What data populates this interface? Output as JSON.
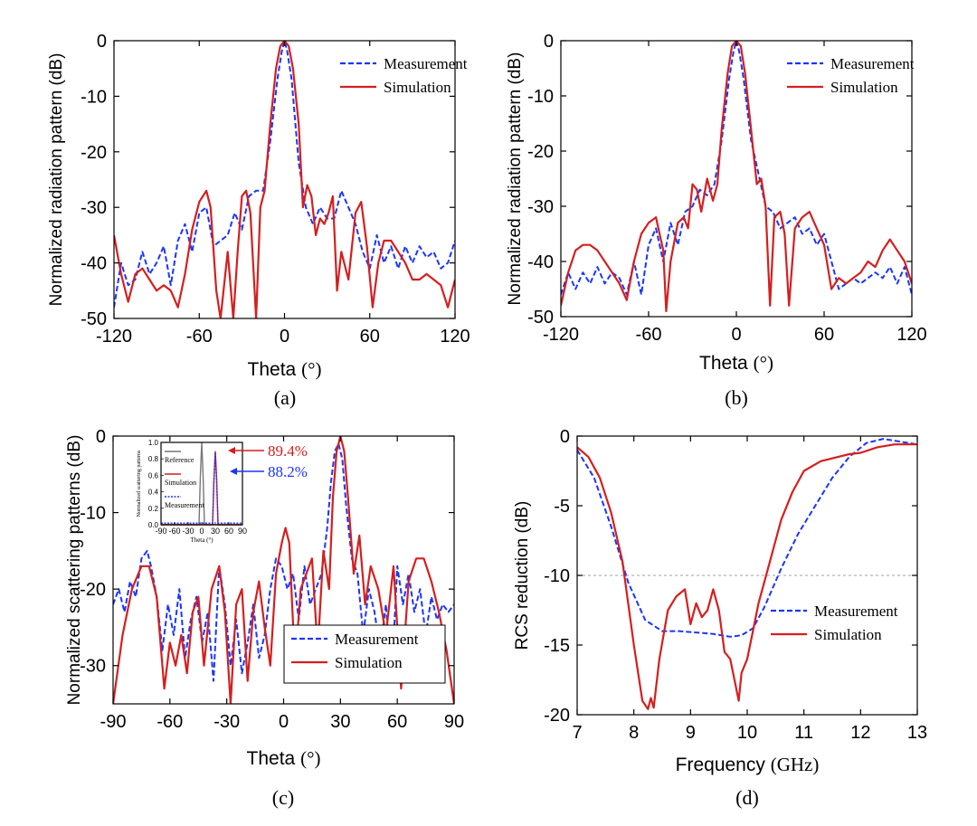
{
  "colors": {
    "measurement": "#1a35ff",
    "simulation": "#d41f1f",
    "reference": "#777777"
  },
  "chart_data": [
    {
      "id": "a",
      "type": "line",
      "caption": "(a)",
      "xlabel": "Theta (°)",
      "ylabel": "Normalized radiation pattern (dB)",
      "xlim": [
        -120,
        120
      ],
      "ylim": [
        -50,
        0
      ],
      "xticks": [
        "-120",
        "-60",
        "0",
        "60",
        "120"
      ],
      "yticks": [
        "0",
        "-10",
        "-20",
        "-30",
        "-40",
        "-50"
      ],
      "legend": {
        "position": "top-right",
        "entries": [
          "Measurement",
          "Simulation"
        ]
      },
      "series": [
        {
          "name": "Measurement",
          "style": "dashed",
          "x": [
            -120,
            -115,
            -110,
            -105,
            -100,
            -95,
            -90,
            -85,
            -80,
            -75,
            -70,
            -65,
            -60,
            -55,
            -50,
            -45,
            -40,
            -35,
            -30,
            -25,
            -20,
            -15,
            -10,
            -5,
            -2,
            0,
            2,
            5,
            10,
            15,
            20,
            25,
            30,
            35,
            40,
            45,
            50,
            55,
            60,
            65,
            70,
            75,
            80,
            85,
            90,
            95,
            100,
            105,
            110,
            115,
            120
          ],
          "y": [
            -48,
            -40,
            -44,
            -43,
            -38,
            -42,
            -40,
            -37,
            -44,
            -36,
            -33,
            -38,
            -31,
            -30,
            -37,
            -36,
            -35,
            -31,
            -34,
            -28,
            -27,
            -27,
            -18,
            -7,
            -2,
            0,
            -2,
            -7,
            -22,
            -30,
            -33,
            -30,
            -32,
            -32,
            -27,
            -30,
            -33,
            -38,
            -41,
            -35,
            -40,
            -37,
            -41,
            -37,
            -40,
            -37,
            -39,
            -38,
            -41,
            -40,
            -36
          ]
        },
        {
          "name": "Simulation",
          "style": "solid",
          "x": [
            -120,
            -115,
            -110,
            -105,
            -100,
            -95,
            -90,
            -85,
            -80,
            -75,
            -70,
            -65,
            -60,
            -55,
            -52,
            -48,
            -45,
            -40,
            -36,
            -33,
            -30,
            -27,
            -24,
            -20,
            -17,
            -14,
            -10,
            -6,
            -3,
            0,
            3,
            6,
            10,
            13,
            16,
            19,
            22,
            25,
            28,
            31,
            34,
            37,
            40,
            45,
            50,
            54,
            58,
            62,
            66,
            70,
            75,
            80,
            85,
            90,
            95,
            100,
            105,
            110,
            115,
            120
          ],
          "y": [
            -35,
            -42,
            -47,
            -42,
            -41,
            -43,
            -45,
            -44,
            -45,
            -48,
            -42,
            -34,
            -29,
            -27,
            -30,
            -45,
            -50,
            -38,
            -50,
            -38,
            -28,
            -27,
            -31,
            -50,
            -30,
            -27,
            -15,
            -5,
            -1,
            0,
            -1,
            -5,
            -15,
            -30,
            -26,
            -28,
            -35,
            -32,
            -33,
            -31,
            -28,
            -45,
            -38,
            -43,
            -31,
            -29,
            -37,
            -48,
            -40,
            -36,
            -36,
            -38,
            -40,
            -43,
            -43,
            -42,
            -43,
            -44,
            -48,
            -43
          ]
        }
      ]
    },
    {
      "id": "b",
      "type": "line",
      "caption": "(b)",
      "xlabel": "Theta (°)",
      "ylabel": "Normalized radiation pattern (dB)",
      "xlim": [
        -120,
        120
      ],
      "ylim": [
        -50,
        0
      ],
      "xticks": [
        "-120",
        "-60",
        "0",
        "60",
        "120"
      ],
      "yticks": [
        "0",
        "-10",
        "-20",
        "-30",
        "-40",
        "-50"
      ],
      "legend": {
        "position": "top-right",
        "entries": [
          "Measurement",
          "Simulation"
        ]
      },
      "series": [
        {
          "name": "Measurement",
          "style": "dashed",
          "x": [
            -120,
            -115,
            -110,
            -105,
            -100,
            -95,
            -90,
            -85,
            -80,
            -75,
            -70,
            -65,
            -60,
            -55,
            -50,
            -45,
            -40,
            -35,
            -30,
            -25,
            -20,
            -15,
            -10,
            -5,
            -2,
            0,
            2,
            5,
            10,
            15,
            20,
            25,
            30,
            35,
            40,
            45,
            50,
            55,
            60,
            65,
            70,
            75,
            80,
            85,
            90,
            95,
            100,
            105,
            110,
            115,
            120
          ],
          "y": [
            -46,
            -42,
            -45,
            -42,
            -44,
            -41,
            -44,
            -42,
            -43,
            -46,
            -40,
            -46,
            -37,
            -34,
            -40,
            -33,
            -37,
            -31,
            -30,
            -27,
            -28,
            -26,
            -18,
            -7,
            -2,
            0,
            -2,
            -7,
            -18,
            -24,
            -30,
            -31,
            -34,
            -33,
            -32,
            -35,
            -34,
            -37,
            -35,
            -40,
            -45,
            -44,
            -43,
            -44,
            -43,
            -42,
            -43,
            -41,
            -44,
            -41,
            -46
          ]
        },
        {
          "name": "Simulation",
          "style": "solid",
          "x": [
            -120,
            -115,
            -110,
            -105,
            -100,
            -95,
            -90,
            -85,
            -80,
            -75,
            -70,
            -65,
            -60,
            -55,
            -50,
            -48,
            -45,
            -40,
            -36,
            -33,
            -30,
            -27,
            -24,
            -20,
            -16,
            -13,
            -10,
            -6,
            -3,
            0,
            3,
            6,
            10,
            14,
            17,
            20,
            23,
            26,
            30,
            33,
            36,
            40,
            45,
            50,
            55,
            60,
            65,
            70,
            75,
            80,
            85,
            90,
            95,
            100,
            105,
            110,
            115,
            120
          ],
          "y": [
            -48,
            -42,
            -38,
            -37,
            -37,
            -38,
            -40,
            -42,
            -44,
            -47,
            -40,
            -35,
            -33,
            -32,
            -38,
            -49,
            -40,
            -33,
            -32,
            -34,
            -26,
            -27,
            -31,
            -25,
            -29,
            -26,
            -16,
            -6,
            -1,
            0,
            -1,
            -6,
            -16,
            -26,
            -25,
            -30,
            -48,
            -32,
            -31,
            -35,
            -48,
            -34,
            -32,
            -31,
            -34,
            -37,
            -45,
            -43,
            -44,
            -43,
            -42,
            -40,
            -41,
            -38,
            -36,
            -38,
            -40,
            -44
          ]
        }
      ]
    },
    {
      "id": "c",
      "type": "line",
      "caption": "(c)",
      "xlabel": "Theta (°)",
      "ylabel": "Normalized scattering patterns (dB)",
      "xlim": [
        -90,
        90
      ],
      "ylim": [
        -35,
        0
      ],
      "xticks": [
        "-90",
        "-60",
        "-30",
        "0",
        "30",
        "60",
        "90"
      ],
      "yticks": [
        "0",
        "-10",
        "-20",
        "-30"
      ],
      "legend": {
        "position": "bottom-right",
        "entries": [
          "Measurement",
          "Simulation"
        ]
      },
      "series": [
        {
          "name": "Measurement",
          "style": "dashed",
          "x": [
            -90,
            -87,
            -84,
            -81,
            -78,
            -75,
            -72,
            -70,
            -67,
            -64,
            -61,
            -58,
            -55,
            -52,
            -49,
            -46,
            -43,
            -40,
            -37,
            -34,
            -31,
            -28,
            -25,
            -22,
            -19,
            -16,
            -13,
            -10,
            -7,
            -4,
            -1,
            2,
            5,
            8,
            11,
            14,
            17,
            20,
            23,
            25,
            27,
            29,
            31,
            33,
            36,
            39,
            42,
            45,
            48,
            51,
            54,
            57,
            60,
            63,
            66,
            69,
            72,
            75,
            78,
            81,
            84,
            87,
            90
          ],
          "y": [
            -22,
            -20,
            -23,
            -19,
            -21,
            -16,
            -15,
            -17,
            -21,
            -28,
            -22,
            -26,
            -20,
            -29,
            -24,
            -21,
            -27,
            -23,
            -32,
            -17,
            -22,
            -30,
            -24,
            -31,
            -27,
            -22,
            -29,
            -26,
            -20,
            -16,
            -17,
            -20,
            -18,
            -24,
            -17,
            -22,
            -20,
            -18,
            -12,
            -6,
            -2,
            -1,
            -3,
            -9,
            -16,
            -18,
            -26,
            -20,
            -23,
            -28,
            -22,
            -32,
            -17,
            -22,
            -18,
            -23,
            -20,
            -26,
            -21,
            -24,
            -22,
            -23,
            -22
          ]
        },
        {
          "name": "Simulation",
          "style": "solid",
          "x": [
            -90,
            -85,
            -80,
            -75,
            -71,
            -67,
            -63,
            -60,
            -57,
            -54,
            -51,
            -48,
            -45,
            -42,
            -38,
            -34,
            -31,
            -28,
            -25,
            -22,
            -19,
            -16,
            -13,
            -10,
            -7,
            -4,
            -1,
            1,
            3,
            6,
            9,
            12,
            15,
            18,
            21,
            24,
            26,
            28,
            30,
            32,
            34,
            37,
            40,
            43,
            46,
            50,
            54,
            58,
            62,
            66,
            70,
            74,
            78,
            82,
            86,
            90
          ],
          "y": [
            -35,
            -26,
            -20,
            -17,
            -17,
            -21,
            -33,
            -27,
            -30,
            -26,
            -31,
            -23,
            -21,
            -30,
            -20,
            -17,
            -23,
            -35,
            -22,
            -20,
            -32,
            -23,
            -19,
            -25,
            -30,
            -18,
            -14,
            -12,
            -14,
            -30,
            -20,
            -18,
            -16,
            -28,
            -15,
            -20,
            -8,
            -2,
            0,
            -2,
            -8,
            -18,
            -13,
            -22,
            -17,
            -20,
            -26,
            -17,
            -33,
            -19,
            -16,
            -16,
            -19,
            -23,
            -28,
            -35
          ]
        }
      ],
      "inset": {
        "type": "line",
        "xlabel": "Theta (°)",
        "ylabel": "Normalized scattering patterns",
        "xlim": [
          -90,
          90
        ],
        "ylim": [
          0,
          1.0
        ],
        "xticks": [
          "-90",
          "-60",
          "-30",
          "0",
          "30",
          "60",
          "90"
        ],
        "yticks": [
          "0.0",
          "0.2",
          "0.4",
          "0.6",
          "0.8",
          "1.0"
        ],
        "legend_entries": [
          "Reference",
          "Simulation",
          "Measurement"
        ],
        "annotations": [
          {
            "text": "89.4%",
            "color": "#d41f1f"
          },
          {
            "text": "88.2%",
            "color": "#1a35ff"
          }
        ],
        "series": [
          {
            "name": "Reference",
            "x": [
              -90,
              -6,
              -3,
              0,
              3,
              6,
              90
            ],
            "y": [
              0,
              0,
              0.6,
              1.0,
              0.6,
              0,
              0
            ]
          },
          {
            "name": "Simulation",
            "x": [
              -90,
              24,
              27,
              30,
              33,
              36,
              90
            ],
            "y": [
              0,
              0,
              0.55,
              0.894,
              0.55,
              0,
              0
            ]
          },
          {
            "name": "Measurement",
            "x": [
              -90,
              24,
              27,
              30,
              33,
              36,
              90
            ],
            "y": [
              0.02,
              0.02,
              0.54,
              0.882,
              0.54,
              0.02,
              0.02
            ]
          }
        ]
      }
    },
    {
      "id": "d",
      "type": "line",
      "caption": "(d)",
      "xlabel": "Frequency (GHz)",
      "ylabel": "RCS reduction (dB)",
      "xlim": [
        7,
        13
      ],
      "ylim": [
        -20,
        0
      ],
      "xticks": [
        "7",
        "8",
        "9",
        "10",
        "11",
        "12",
        "13"
      ],
      "yticks": [
        "0",
        "-5",
        "-10",
        "-15",
        "-20"
      ],
      "reference_line": -10,
      "legend": {
        "position": "bottom-right",
        "entries": [
          "Measurement",
          "Simulation"
        ]
      },
      "series": [
        {
          "name": "Measurement",
          "style": "dashed",
          "x": [
            7,
            7.3,
            7.6,
            7.9,
            8.2,
            8.5,
            8.8,
            9.1,
            9.4,
            9.7,
            9.9,
            10.1,
            10.3,
            10.6,
            10.9,
            11.2,
            11.5,
            11.8,
            12.1,
            12.4,
            12.7,
            13
          ],
          "y": [
            -1,
            -3,
            -6.5,
            -10.5,
            -13.2,
            -14.0,
            -14.0,
            -14.1,
            -14.2,
            -14.4,
            -14.3,
            -13.8,
            -12.3,
            -9.5,
            -7,
            -5,
            -3,
            -1.5,
            -0.5,
            -0.2,
            -0.4,
            -0.6
          ]
        },
        {
          "name": "Simulation",
          "style": "solid",
          "x": [
            7,
            7.2,
            7.4,
            7.6,
            7.8,
            8.0,
            8.15,
            8.25,
            8.3,
            8.35,
            8.45,
            8.6,
            8.75,
            8.9,
            9.0,
            9.1,
            9.2,
            9.3,
            9.4,
            9.5,
            9.6,
            9.7,
            9.8,
            9.85,
            9.9,
            10.0,
            10.1,
            10.2,
            10.4,
            10.6,
            10.8,
            11.0,
            11.3,
            11.6,
            11.8,
            12.0,
            12.3,
            12.6,
            13
          ],
          "y": [
            -0.8,
            -1.5,
            -3,
            -5.5,
            -9,
            -15,
            -19,
            -19.6,
            -18.8,
            -19.5,
            -16,
            -12.5,
            -11.5,
            -11,
            -13.5,
            -12,
            -13,
            -12.5,
            -11,
            -12.5,
            -15.5,
            -16,
            -18,
            -19,
            -17,
            -16,
            -14,
            -12,
            -9,
            -6,
            -4,
            -2.5,
            -1.8,
            -1.5,
            -1.3,
            -1.2,
            -0.8,
            -0.6,
            -0.6
          ]
        }
      ]
    }
  ]
}
